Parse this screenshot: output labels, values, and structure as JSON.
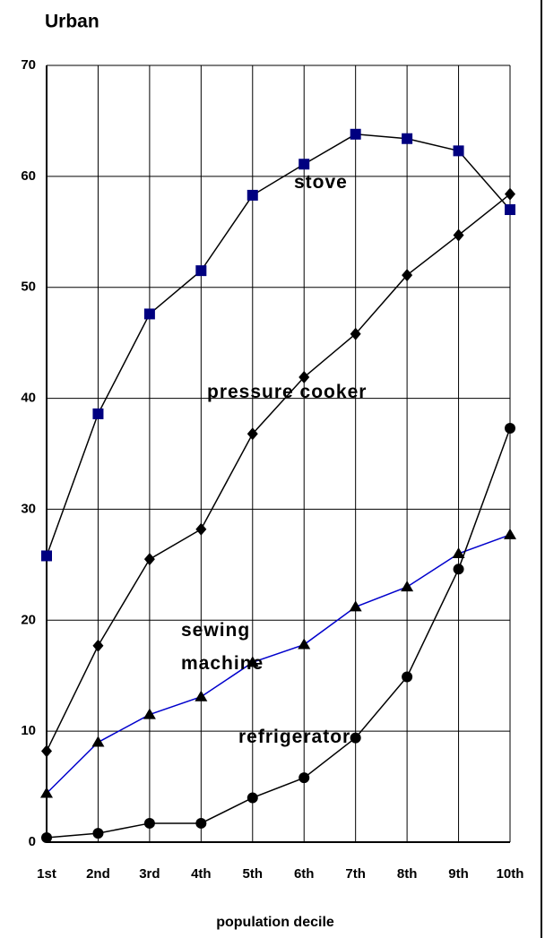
{
  "chart_data": {
    "type": "line",
    "title": "Urban",
    "x_label": "population decile",
    "categories": [
      "1st",
      "2nd",
      "3rd",
      "4th",
      "5th",
      "6th",
      "7th",
      "8th",
      "9th",
      "10th"
    ],
    "ylim": [
      0,
      70
    ],
    "yticks": [
      0,
      10,
      20,
      30,
      40,
      50,
      60,
      70
    ],
    "grid": true,
    "series": [
      {
        "name": "stove",
        "color": "#000080",
        "line_color": "#000000",
        "marker": "square",
        "values": [
          25.8,
          38.6,
          47.6,
          51.5,
          58.3,
          61.1,
          63.8,
          63.4,
          62.3,
          57.0
        ]
      },
      {
        "name": "pressure cooker",
        "color": "#000000",
        "line_color": "#000000",
        "marker": "diamond",
        "values": [
          8.2,
          17.7,
          25.5,
          28.2,
          36.8,
          41.9,
          45.8,
          51.1,
          54.7,
          58.4
        ]
      },
      {
        "name": "sewing machine",
        "color": "#000000",
        "line_color": "#0000cc",
        "marker": "triangle",
        "values": [
          4.4,
          9.0,
          11.5,
          13.1,
          16.2,
          17.8,
          21.2,
          23.0,
          26.0,
          27.7
        ]
      },
      {
        "name": "refrigerator",
        "color": "#000000",
        "line_color": "#000000",
        "marker": "circle",
        "values": [
          0.4,
          0.8,
          1.7,
          1.7,
          4.0,
          5.8,
          9.4,
          14.9,
          24.6,
          37.3
        ]
      }
    ]
  }
}
